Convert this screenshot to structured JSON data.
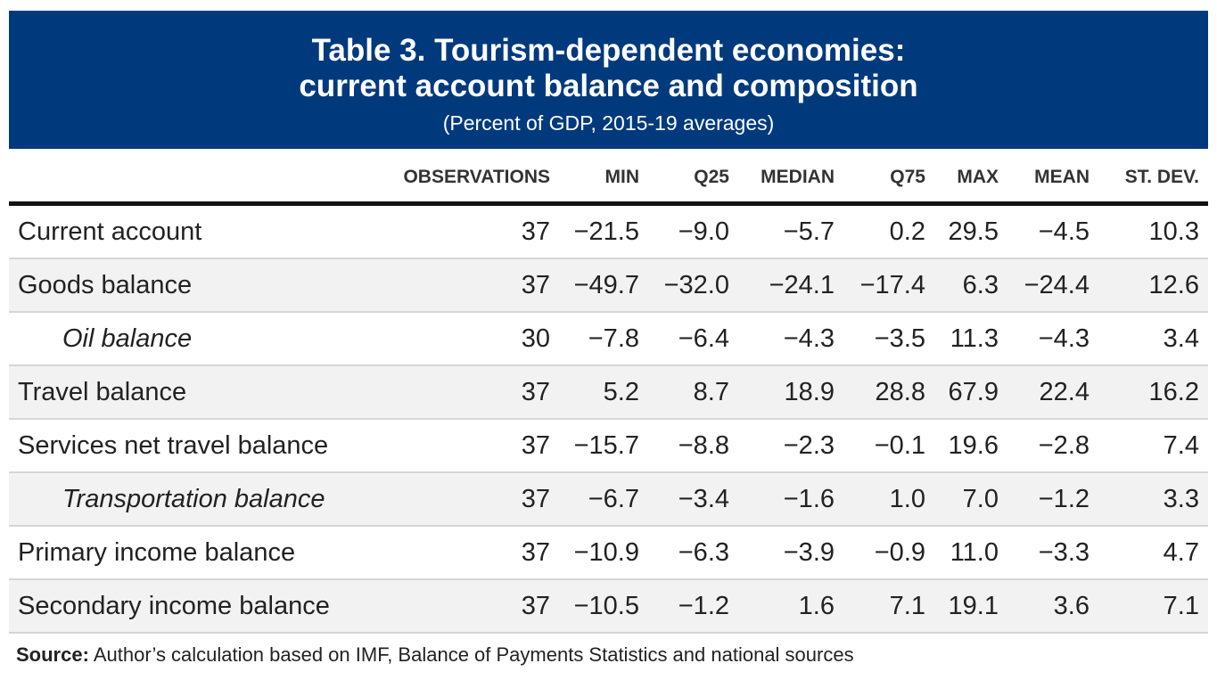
{
  "header": {
    "title_line1": "Table 3. Tourism-dependent economies:",
    "title_line2": "current account balance and composition",
    "subtitle": "(Percent of GDP, 2015-19 averages)"
  },
  "columns": [
    "",
    "OBSERVATIONS",
    "MIN",
    "Q25",
    "MEDIAN",
    "Q75",
    "MAX",
    "MEAN",
    "ST. DEV."
  ],
  "rows": [
    {
      "label": "Current account",
      "indent": false,
      "values": [
        "37",
        "−21.5",
        "−9.0",
        "−5.7",
        "0.2",
        "29.5",
        "−4.5",
        "10.3"
      ]
    },
    {
      "label": "Goods balance",
      "indent": false,
      "values": [
        "37",
        "−49.7",
        "−32.0",
        "−24.1",
        "−17.4",
        "6.3",
        "−24.4",
        "12.6"
      ]
    },
    {
      "label": "Oil balance",
      "indent": true,
      "values": [
        "30",
        "−7.8",
        "−6.4",
        "−4.3",
        "−3.5",
        "11.3",
        "−4.3",
        "3.4"
      ]
    },
    {
      "label": "Travel balance",
      "indent": false,
      "values": [
        "37",
        "5.2",
        "8.7",
        "18.9",
        "28.8",
        "67.9",
        "22.4",
        "16.2"
      ]
    },
    {
      "label": "Services net travel balance",
      "indent": false,
      "values": [
        "37",
        "−15.7",
        "−8.8",
        "−2.3",
        "−0.1",
        "19.6",
        "−2.8",
        "7.4"
      ]
    },
    {
      "label": "Transportation balance",
      "indent": true,
      "values": [
        "37",
        "−6.7",
        "−3.4",
        "−1.6",
        "1.0",
        "7.0",
        "−1.2",
        "3.3"
      ]
    },
    {
      "label": "Primary income balance",
      "indent": false,
      "values": [
        "37",
        "−10.9",
        "−6.3",
        "−3.9",
        "−0.9",
        "11.0",
        "−3.3",
        "4.7"
      ]
    },
    {
      "label": "Secondary income balance",
      "indent": false,
      "values": [
        "37",
        "−10.5",
        "−1.2",
        "1.6",
        "7.1",
        "19.1",
        "3.6",
        "7.1"
      ]
    }
  ],
  "source": {
    "label": "Source:",
    "text": " Author’s calculation based on IMF, Balance of Payments Statistics and national sources"
  }
}
